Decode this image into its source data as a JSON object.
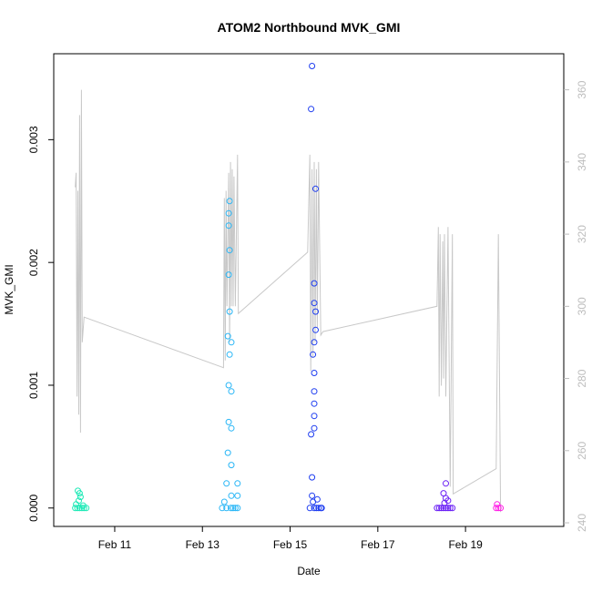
{
  "chart_data": {
    "type": "scatter",
    "title": "ATOM2 Northbound MVK_GMI",
    "xlabel": "Date",
    "ylabel": "MVK_GMI",
    "x_ticks": [
      "Feb 11",
      "Feb 13",
      "Feb 15",
      "Feb 17",
      "Feb 19"
    ],
    "x_tick_days": [
      11,
      13,
      15,
      17,
      19
    ],
    "xlim_days": [
      9.9,
      20.95
    ],
    "ylim": [
      -0.00015,
      0.0037
    ],
    "y_ticks": [
      0.0,
      0.001,
      0.002,
      0.003
    ],
    "y_tick_labels": [
      "0.000",
      "0.001",
      "0.002",
      "0.003"
    ],
    "right_axis": {
      "ylim": [
        239,
        370
      ],
      "ticks": [
        240,
        260,
        280,
        300,
        320,
        340,
        360
      ],
      "tick_labels": [
        "240",
        "260",
        "280",
        "300",
        "320",
        "340",
        "360"
      ],
      "line_color": "#c8c8c8"
    },
    "grid": false,
    "scatter_groups": [
      {
        "color": "#1de9b6",
        "points": [
          [
            10.1,
            0.0
          ],
          [
            10.15,
            0.0
          ],
          [
            10.2,
            0.0
          ],
          [
            10.25,
            0.0
          ],
          [
            10.3,
            0.0
          ],
          [
            10.35,
            0.0
          ],
          [
            10.12,
            3e-05
          ],
          [
            10.18,
            6e-05
          ],
          [
            10.22,
            9e-05
          ],
          [
            10.2,
            0.00012
          ],
          [
            10.16,
            0.00014
          ],
          [
            10.28,
            2e-05
          ]
        ]
      },
      {
        "color": "#29b6f6",
        "points": [
          [
            13.45,
            0.0
          ],
          [
            13.5,
            5e-05
          ],
          [
            13.55,
            0.0002
          ],
          [
            13.58,
            0.00045
          ],
          [
            13.6,
            0.0007
          ],
          [
            13.6,
            0.001
          ],
          [
            13.62,
            0.00125
          ],
          [
            13.58,
            0.0014
          ],
          [
            13.62,
            0.0016
          ],
          [
            13.6,
            0.0019
          ],
          [
            13.62,
            0.0021
          ],
          [
            13.6,
            0.0023
          ],
          [
            13.6,
            0.0024
          ],
          [
            13.62,
            0.0025
          ],
          [
            13.66,
            0.00135
          ],
          [
            13.66,
            0.00095
          ],
          [
            13.66,
            0.00065
          ],
          [
            13.66,
            0.00035
          ],
          [
            13.66,
            0.0001
          ],
          [
            13.7,
            0.0
          ],
          [
            13.75,
            0.0
          ],
          [
            13.8,
            0.0
          ],
          [
            13.8,
            0.0001
          ],
          [
            13.8,
            0.0002
          ],
          [
            13.55,
            0.0
          ],
          [
            13.65,
            0.0
          ]
        ]
      },
      {
        "color": "#1e3df0",
        "points": [
          [
            15.5,
            0.0036
          ],
          [
            15.48,
            0.00325
          ],
          [
            15.58,
            0.0026
          ],
          [
            15.55,
            0.00183
          ],
          [
            15.55,
            0.00167
          ],
          [
            15.58,
            0.0016
          ],
          [
            15.58,
            0.00145
          ],
          [
            15.55,
            0.00135
          ],
          [
            15.52,
            0.00125
          ],
          [
            15.55,
            0.0011
          ],
          [
            15.55,
            0.00095
          ],
          [
            15.55,
            0.00085
          ],
          [
            15.55,
            0.00075
          ],
          [
            15.55,
            0.00065
          ],
          [
            15.48,
            0.0006
          ],
          [
            15.5,
            0.00025
          ],
          [
            15.5,
            0.0001
          ],
          [
            15.55,
            0.0
          ],
          [
            15.45,
            0.0
          ],
          [
            15.6,
            0.0
          ],
          [
            15.65,
            0.0
          ],
          [
            15.7,
            0.0
          ],
          [
            15.72,
            0.0
          ],
          [
            15.52,
            5e-05
          ],
          [
            15.62,
            7e-05
          ]
        ]
      },
      {
        "color": "#6a1ff5",
        "points": [
          [
            18.35,
            0.0
          ],
          [
            18.4,
            0.0
          ],
          [
            18.45,
            0.0
          ],
          [
            18.5,
            0.0
          ],
          [
            18.55,
            0.0
          ],
          [
            18.6,
            0.0
          ],
          [
            18.65,
            0.0
          ],
          [
            18.7,
            0.0
          ],
          [
            18.52,
            4e-05
          ],
          [
            18.55,
            8e-05
          ],
          [
            18.5,
            0.00012
          ],
          [
            18.55,
            0.0002
          ],
          [
            18.6,
            6e-05
          ]
        ]
      },
      {
        "color": "#ff1ee6",
        "points": [
          [
            19.7,
            0.0
          ],
          [
            19.75,
            0.0
          ],
          [
            19.72,
            3e-05
          ],
          [
            19.8,
            0.0
          ]
        ]
      }
    ],
    "line_series": {
      "color": "#c8c8c8",
      "axis": "right",
      "points": [
        [
          10.1,
          333
        ],
        [
          10.12,
          337
        ],
        [
          10.14,
          275
        ],
        [
          10.16,
          332
        ],
        [
          10.18,
          270
        ],
        [
          10.2,
          353
        ],
        [
          10.22,
          265
        ],
        [
          10.24,
          360
        ],
        [
          10.26,
          290
        ],
        [
          10.3,
          297
        ],
        [
          13.48,
          283
        ],
        [
          13.5,
          330
        ],
        [
          13.52,
          285
        ],
        [
          13.54,
          332
        ],
        [
          13.56,
          300
        ],
        [
          13.6,
          337
        ],
        [
          13.62,
          290
        ],
        [
          13.64,
          340
        ],
        [
          13.66,
          300
        ],
        [
          13.68,
          338
        ],
        [
          13.7,
          300
        ],
        [
          13.72,
          336
        ],
        [
          13.75,
          300
        ],
        [
          13.8,
          342
        ],
        [
          13.82,
          298
        ],
        [
          15.4,
          315
        ],
        [
          15.45,
          342
        ],
        [
          15.47,
          282
        ],
        [
          15.5,
          338
        ],
        [
          15.52,
          286
        ],
        [
          15.55,
          340
        ],
        [
          15.57,
          290
        ],
        [
          15.6,
          338
        ],
        [
          15.62,
          294
        ],
        [
          15.65,
          340
        ],
        [
          15.7,
          292
        ],
        [
          15.75,
          293
        ],
        [
          18.35,
          300
        ],
        [
          18.38,
          322
        ],
        [
          18.4,
          275
        ],
        [
          18.42,
          320
        ],
        [
          18.45,
          278
        ],
        [
          18.48,
          318
        ],
        [
          18.5,
          280
        ],
        [
          18.52,
          320
        ],
        [
          18.55,
          275
        ],
        [
          18.6,
          322
        ],
        [
          18.65,
          250
        ],
        [
          18.7,
          320
        ],
        [
          18.72,
          248
        ],
        [
          19.7,
          255
        ],
        [
          19.75,
          320
        ],
        [
          19.8,
          243
        ]
      ]
    }
  }
}
